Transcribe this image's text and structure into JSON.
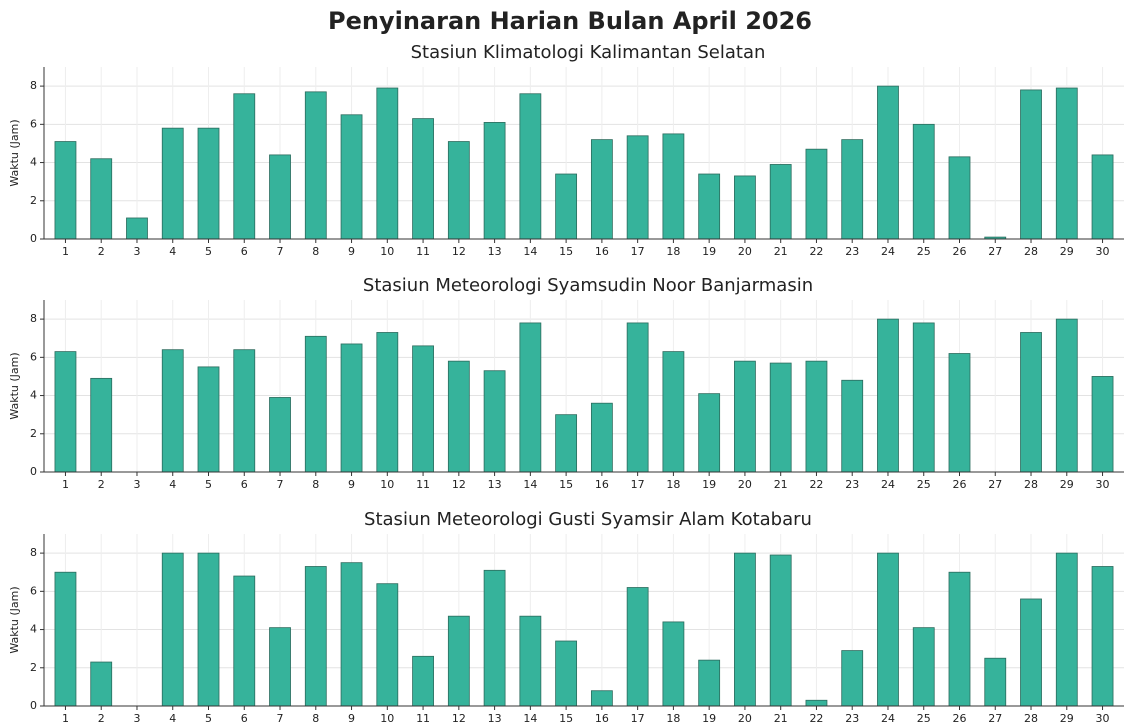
{
  "title": "Penyinaran Harian Bulan April 2026",
  "chart_data": [
    {
      "type": "bar",
      "title": "Stasiun Klimatologi Kalimantan Selatan",
      "ylabel": "Waktu (Jam)",
      "categories": [
        "1",
        "2",
        "3",
        "4",
        "5",
        "6",
        "7",
        "8",
        "9",
        "10",
        "11",
        "12",
        "13",
        "14",
        "15",
        "16",
        "17",
        "18",
        "19",
        "20",
        "21",
        "22",
        "23",
        "24",
        "25",
        "26",
        "27",
        "28",
        "29",
        "30"
      ],
      "values": [
        5.1,
        4.2,
        1.1,
        5.8,
        5.8,
        7.6,
        4.4,
        7.7,
        6.5,
        7.9,
        6.3,
        5.1,
        6.1,
        7.6,
        3.4,
        5.2,
        5.4,
        5.5,
        3.4,
        3.3,
        3.9,
        4.7,
        5.2,
        8.0,
        6.0,
        4.3,
        0.1,
        7.8,
        7.9,
        4.4
      ],
      "color": "#36b39b",
      "ylim": [
        0,
        9
      ],
      "yticks": [
        0,
        2,
        4,
        6,
        8
      ],
      "grid": true
    },
    {
      "type": "bar",
      "title": "Stasiun Meteorologi Syamsudin Noor Banjarmasin",
      "ylabel": "Waktu (Jam)",
      "categories": [
        "1",
        "2",
        "3",
        "4",
        "5",
        "6",
        "7",
        "8",
        "9",
        "10",
        "11",
        "12",
        "13",
        "14",
        "15",
        "16",
        "17",
        "18",
        "19",
        "20",
        "21",
        "22",
        "23",
        "24",
        "25",
        "26",
        "27",
        "28",
        "29",
        "30"
      ],
      "values": [
        6.3,
        4.9,
        0,
        6.4,
        5.5,
        6.4,
        3.9,
        7.1,
        6.7,
        7.3,
        6.6,
        5.8,
        5.3,
        7.8,
        3.0,
        3.6,
        7.8,
        6.3,
        4.1,
        5.8,
        5.7,
        5.8,
        4.8,
        8.0,
        7.8,
        6.2,
        0,
        7.3,
        8.0,
        5.0
      ],
      "color": "#36b39b",
      "ylim": [
        0,
        9
      ],
      "yticks": [
        0,
        2,
        4,
        6,
        8
      ],
      "grid": true
    },
    {
      "type": "bar",
      "title": "Stasiun Meteorologi Gusti Syamsir Alam Kotabaru",
      "ylabel": "Waktu (Jam)",
      "categories": [
        "1",
        "2",
        "3",
        "4",
        "5",
        "6",
        "7",
        "8",
        "9",
        "10",
        "11",
        "12",
        "13",
        "14",
        "15",
        "16",
        "17",
        "18",
        "19",
        "20",
        "21",
        "22",
        "23",
        "24",
        "25",
        "26",
        "27",
        "28",
        "29",
        "30"
      ],
      "values": [
        7.0,
        2.3,
        0,
        8.0,
        8.0,
        6.8,
        4.1,
        7.3,
        7.5,
        6.4,
        2.6,
        4.7,
        7.1,
        4.7,
        3.4,
        0.8,
        6.2,
        4.4,
        2.4,
        8.0,
        7.9,
        0.3,
        2.9,
        8.0,
        4.1,
        7.0,
        2.5,
        5.6,
        8.0,
        7.3
      ],
      "color": "#36b39b",
      "ylim": [
        0,
        9
      ],
      "yticks": [
        0,
        2,
        4,
        6,
        8
      ],
      "grid": true
    }
  ]
}
